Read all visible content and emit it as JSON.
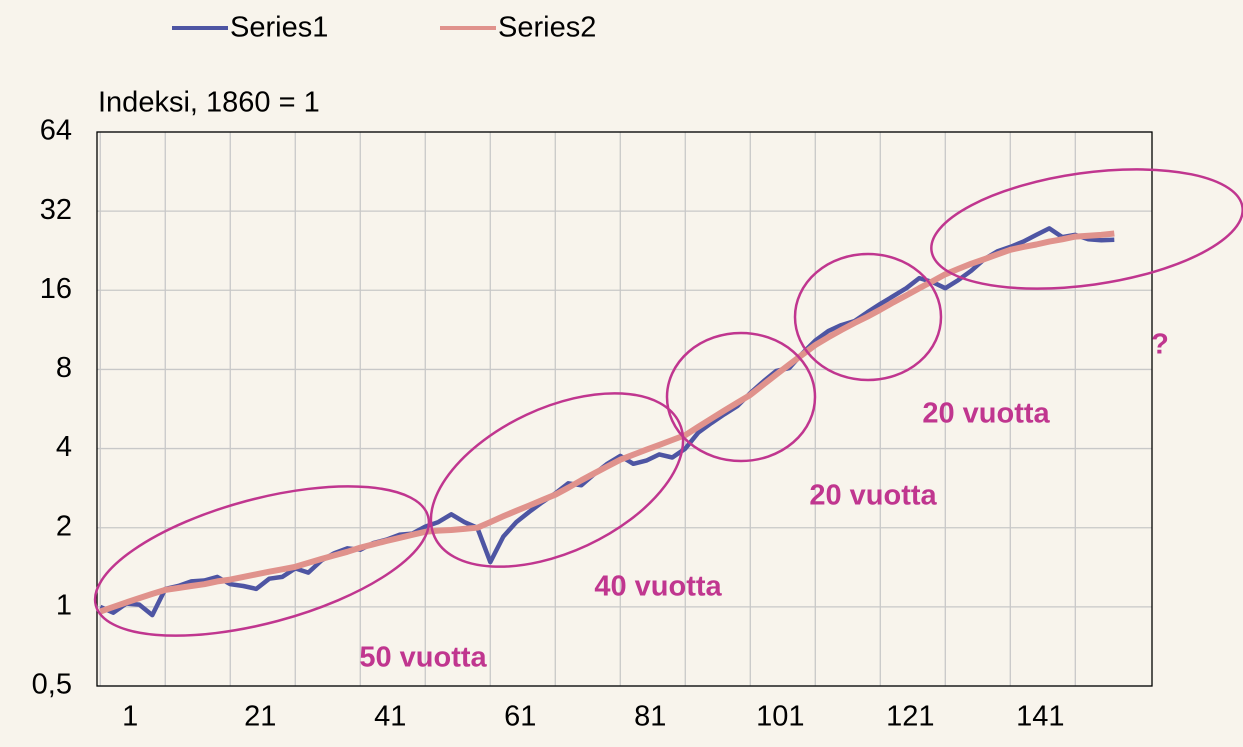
{
  "chart_data": {
    "type": "line",
    "y_label": "Indeksi, 1860 = 1",
    "log_scale": true,
    "grid": true,
    "legend_position": "top",
    "x": [
      1,
      3,
      5,
      7,
      9,
      11,
      13,
      15,
      17,
      19,
      21,
      23,
      25,
      27,
      29,
      31,
      33,
      35,
      37,
      39,
      41,
      43,
      45,
      47,
      49,
      51,
      53,
      55,
      57,
      59,
      61,
      63,
      65,
      67,
      69,
      71,
      73,
      75,
      77,
      79,
      81,
      83,
      85,
      87,
      89,
      91,
      93,
      95,
      97,
      99,
      101,
      103,
      105,
      107,
      109,
      111,
      113,
      115,
      117,
      119,
      121,
      123,
      125,
      127,
      129,
      131,
      133,
      135,
      137,
      139,
      141,
      143,
      145,
      147,
      149,
      151,
      153,
      155,
      157
    ],
    "series": [
      {
        "name": "Series1",
        "color": "#4e55a3",
        "values": [
          1.0,
          0.95,
          1.03,
          1.02,
          0.93,
          1.17,
          1.2,
          1.25,
          1.26,
          1.3,
          1.22,
          1.2,
          1.17,
          1.28,
          1.3,
          1.4,
          1.35,
          1.5,
          1.6,
          1.67,
          1.65,
          1.75,
          1.8,
          1.88,
          1.9,
          2.02,
          2.1,
          2.25,
          2.1,
          2.0,
          1.48,
          1.85,
          2.1,
          2.3,
          2.5,
          2.7,
          2.95,
          2.9,
          3.2,
          3.5,
          3.75,
          3.5,
          3.6,
          3.8,
          3.7,
          4.0,
          4.6,
          5.0,
          5.4,
          5.8,
          6.5,
          7.2,
          7.9,
          8.1,
          9.2,
          10.3,
          11.2,
          11.8,
          12.2,
          13.2,
          14.2,
          15.2,
          16.3,
          17.8,
          17.2,
          16.3,
          17.5,
          19.0,
          21.0,
          22.5,
          23.4,
          24.5,
          26.0,
          27.5,
          25.5,
          26.0,
          25.0,
          24.8,
          24.9
        ]
      },
      {
        "name": "Series2",
        "color": "#e0928c",
        "values": [
          0.96,
          1.0,
          1.04,
          1.08,
          1.12,
          1.16,
          1.18,
          1.2,
          1.22,
          1.25,
          1.27,
          1.3,
          1.33,
          1.36,
          1.39,
          1.42,
          1.47,
          1.52,
          1.57,
          1.62,
          1.68,
          1.73,
          1.78,
          1.83,
          1.88,
          1.93,
          1.95,
          1.96,
          1.98,
          2.0,
          2.1,
          2.21,
          2.32,
          2.43,
          2.55,
          2.67,
          2.84,
          3.03,
          3.22,
          3.42,
          3.63,
          3.79,
          3.96,
          4.13,
          4.31,
          4.5,
          4.84,
          5.2,
          5.58,
          5.98,
          6.4,
          7.0,
          7.65,
          8.35,
          9.1,
          9.9,
          10.6,
          11.3,
          12.0,
          12.7,
          13.5,
          14.4,
          15.3,
          16.3,
          17.3,
          18.4,
          19.3,
          20.2,
          21.0,
          21.9,
          22.8,
          23.4,
          23.9,
          24.5,
          25.0,
          25.6,
          25.8,
          26.0,
          26.3
        ]
      }
    ],
    "xlim": [
      0.5,
      162.8
    ],
    "xticks": [
      1,
      21,
      41,
      61,
      81,
      101,
      121,
      141
    ],
    "ylim": [
      0.5,
      64
    ],
    "yticks": [
      {
        "value": 0.5,
        "label": "0,5"
      },
      1,
      2,
      4,
      8,
      16,
      32,
      64
    ],
    "annotations": [
      {
        "text": "50 vuotta",
        "color": "#c0368f"
      },
      {
        "text": "40 vuotta",
        "color": "#c0368f"
      },
      {
        "text": "20 vuotta",
        "color": "#c0368f"
      },
      {
        "text": "20 vuotta",
        "color": "#c0368f"
      },
      {
        "text": "?",
        "color": "#c0368f"
      }
    ]
  }
}
